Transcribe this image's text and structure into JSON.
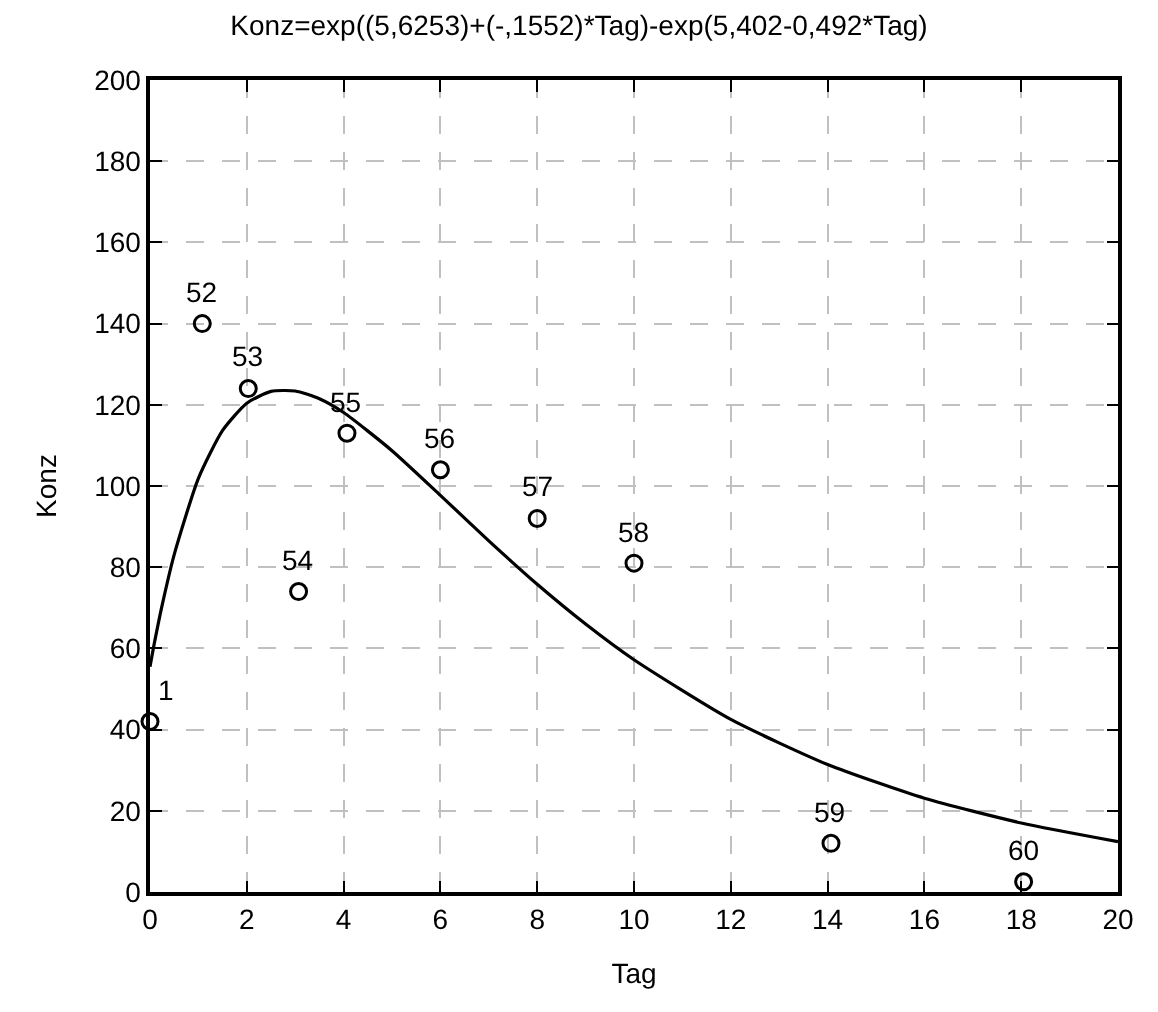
{
  "chart_data": {
    "type": "scatter",
    "title": "Konz=exp((5,6253)+(-,1552)*Tag)-exp(5,402-0,492*Tag)",
    "xlabel": "Tag",
    "ylabel": "Konz",
    "xlim": [
      0,
      20
    ],
    "xticks": [
      0,
      2,
      4,
      6,
      8,
      10,
      12,
      14,
      16,
      18,
      20
    ],
    "ylim": [
      0,
      200
    ],
    "yticks": [
      0,
      20,
      40,
      60,
      80,
      100,
      120,
      140,
      160,
      180,
      200
    ],
    "grid": true,
    "series": [
      {
        "color": "#000000",
        "marker": "circle",
        "x": [
          0,
          1.08,
          2.03,
          3.07,
          4.07,
          6.0,
          8.0,
          10.0,
          14.07,
          18.05
        ],
        "values": [
          42,
          140,
          124,
          74,
          113,
          104,
          92,
          81,
          12,
          2.5
        ]
      },
      {
        "type": "line",
        "color": "#000000",
        "marker": "none",
        "line_style": "solid",
        "x": [
          0,
          0.1,
          0.25,
          0.5,
          1,
          1.5,
          2,
          2.5,
          3,
          3.5,
          4,
          5,
          6,
          7,
          8,
          9,
          10,
          12,
          14,
          16,
          18,
          20
        ],
        "values": [
          55.5,
          61.9,
          70.6,
          83.1,
          101.9,
          113.7,
          120.4,
          123.3,
          123.4,
          121.5,
          118.1,
          108.7,
          97.7,
          86.5,
          75.8,
          66.0,
          57.2,
          42.5,
          31.4,
          23.1,
          17.0,
          12.4
        ]
      }
    ],
    "annotations": [
      {
        "text": "1",
        "x": 0,
        "y": 42
      },
      {
        "text": "52",
        "x": 1.08,
        "y": 140
      },
      {
        "text": "53",
        "x": 2.03,
        "y": 124
      },
      {
        "text": "54",
        "x": 3.07,
        "y": 74
      },
      {
        "text": "55",
        "x": 4.07,
        "y": 113
      },
      {
        "text": "56",
        "x": 6.0,
        "y": 104
      },
      {
        "text": "57",
        "x": 8.0,
        "y": 92
      },
      {
        "text": "58",
        "x": 10.0,
        "y": 81
      },
      {
        "text": "59",
        "x": 14.07,
        "y": 12
      },
      {
        "text": "60",
        "x": 18.05,
        "y": 2.5
      }
    ]
  }
}
